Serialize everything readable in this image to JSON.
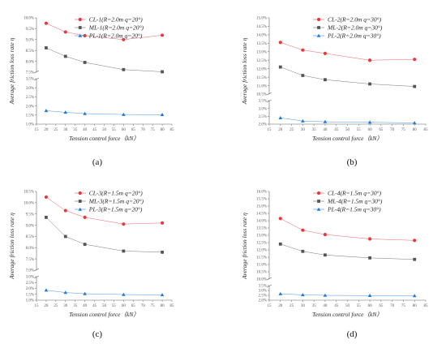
{
  "chart_data": [
    {
      "type": "line",
      "caption": "(a)",
      "xlabel": "Tension control force（kN）",
      "ylabel": "Average friction loss rate η",
      "xlim": [
        15,
        85
      ],
      "xticks": [
        "15",
        "20",
        "25",
        "30",
        "35",
        "40",
        "45",
        "50",
        "55",
        "60",
        "65",
        "70",
        "75",
        "80",
        "85"
      ],
      "ylim": [
        1.0,
        10.0
      ],
      "break": [
        3.5,
        7.5
      ],
      "yticks_lower": [
        "1.0%",
        "1.5%",
        "2.0%",
        "2.5%",
        "3.0%",
        "3.5%"
      ],
      "yticks_upper": [
        "7.5%",
        "8.0%",
        "8.5%",
        "9.0%",
        "9.5%",
        "10.0%"
      ],
      "legend_position": "top-right",
      "x": [
        20,
        30,
        40,
        60,
        80
      ],
      "series": [
        {
          "name": "CL-1(R=2.0m q=20°)",
          "color": "#e8383d",
          "marker": "circle",
          "values": [
            9.75,
            9.35,
            9.18,
            9.0,
            9.2
          ]
        },
        {
          "name": "ML-1(R=2.0m q=20°)",
          "color": "#555555",
          "marker": "square",
          "values": [
            8.62,
            8.23,
            7.95,
            7.62,
            7.52
          ]
        },
        {
          "name": "PL-1(R=2.0m q=20°)",
          "color": "#1e78d7",
          "marker": "triangle",
          "values": [
            1.74,
            1.65,
            1.58,
            1.53,
            1.52
          ]
        }
      ]
    },
    {
      "type": "line",
      "caption": "(b)",
      "xlabel": "Tension control force（kN）",
      "ylabel": "Average friction loss rate η",
      "xlim": [
        15,
        85
      ],
      "xticks": [
        "15",
        "20",
        "25",
        "30",
        "35",
        "40",
        "45",
        "50",
        "55",
        "60",
        "65",
        "70",
        "75",
        "80",
        "85"
      ],
      "ylim": [
        2.0,
        15.0
      ],
      "break": [
        3.5,
        10.5
      ],
      "yticks_lower": [
        "2.0%",
        "2.5%",
        "3.0%",
        "3.5%"
      ],
      "yticks_upper": [
        "10.5%",
        "11.0%",
        "11.5%",
        "12.0%",
        "12.5%",
        "13.0%",
        "13.5%",
        "14.0%",
        "14.5%",
        "15.0%"
      ],
      "legend_position": "top-right",
      "x": [
        20,
        30,
        40,
        60,
        80
      ],
      "series": [
        {
          "name": "CL-2(R=2.0m q=30°)",
          "color": "#e8383d",
          "marker": "circle",
          "values": [
            13.55,
            13.1,
            12.9,
            12.5,
            12.55
          ]
        },
        {
          "name": "ML-2(R=2.0m q=30°)",
          "color": "#555555",
          "marker": "square",
          "values": [
            12.1,
            11.6,
            11.35,
            11.1,
            10.95
          ]
        },
        {
          "name": "PL-2(R=2.0m q=30°)",
          "color": "#1e78d7",
          "marker": "triangle",
          "values": [
            2.4,
            2.2,
            2.15,
            2.12,
            2.08
          ]
        }
      ]
    },
    {
      "type": "line",
      "caption": "(c)",
      "xlabel": "Tension control force（kN）",
      "ylabel": "Average friction loss rate η",
      "xlim": [
        15,
        85
      ],
      "xticks": [
        "15",
        "20",
        "25",
        "30",
        "35",
        "40",
        "45",
        "50",
        "55",
        "60",
        "65",
        "70",
        "75",
        "80",
        "85"
      ],
      "ylim": [
        1.0,
        10.5
      ],
      "break": [
        3.0,
        7.0
      ],
      "yticks_lower": [
        "1.0%",
        "1.5%",
        "2.0%",
        "2.5%",
        "3.0%"
      ],
      "yticks_upper": [
        "7.0%",
        "7.5%",
        "8.0%",
        "8.5%",
        "9.0%",
        "9.5%",
        "10.0%",
        "10.5%"
      ],
      "legend_position": "top-right",
      "x": [
        20,
        30,
        40,
        60,
        80
      ],
      "series": [
        {
          "name": "CL-3(R=1.5m q=20°)",
          "color": "#e8383d",
          "marker": "circle",
          "values": [
            10.25,
            9.65,
            9.35,
            9.05,
            9.1
          ]
        },
        {
          "name": "ML-3(R=1.5m q=20°)",
          "color": "#555555",
          "marker": "square",
          "values": [
            9.35,
            8.5,
            8.15,
            7.85,
            7.8
          ]
        },
        {
          "name": "PL-3(R=1.5m q=20°)",
          "color": "#1e78d7",
          "marker": "triangle",
          "values": [
            1.85,
            1.65,
            1.55,
            1.48,
            1.45
          ]
        }
      ]
    },
    {
      "type": "line",
      "caption": "(d)",
      "xlabel": "Tension control force（kN）",
      "ylabel": "Average friction loss rate η",
      "xlim": [
        15,
        85
      ],
      "xticks": [
        "15",
        "20",
        "25",
        "30",
        "35",
        "40",
        "45",
        "50",
        "55",
        "60",
        "65",
        "70",
        "75",
        "80",
        "85"
      ],
      "ylim": [
        2.0,
        16.0
      ],
      "break": [
        3.5,
        10.0
      ],
      "yticks_lower": [
        "2.0%",
        "2.5%",
        "3.0%",
        "3.5%"
      ],
      "yticks_upper": [
        "10.0%",
        "10.5%",
        "11.0%",
        "11.5%",
        "12.0%",
        "12.5%",
        "13.0%",
        "13.5%",
        "14.0%",
        "14.5%",
        "15.0%",
        "15.5%",
        "16.0%"
      ],
      "legend_position": "top-right",
      "x": [
        20,
        30,
        40,
        60,
        80
      ],
      "series": [
        {
          "name": "CL-4(R=1.5m q=30°)",
          "color": "#e8383d",
          "marker": "circle",
          "values": [
            14.15,
            13.35,
            13.05,
            12.75,
            12.65
          ]
        },
        {
          "name": "ML-4(R=1.5m q=30°)",
          "color": "#555555",
          "marker": "square",
          "values": [
            12.4,
            11.9,
            11.65,
            11.45,
            11.35
          ]
        },
        {
          "name": "PL-4(R=1.5m q=30°)",
          "color": "#1e78d7",
          "marker": "triangle",
          "values": [
            2.65,
            2.55,
            2.5,
            2.47,
            2.45
          ]
        }
      ]
    }
  ]
}
